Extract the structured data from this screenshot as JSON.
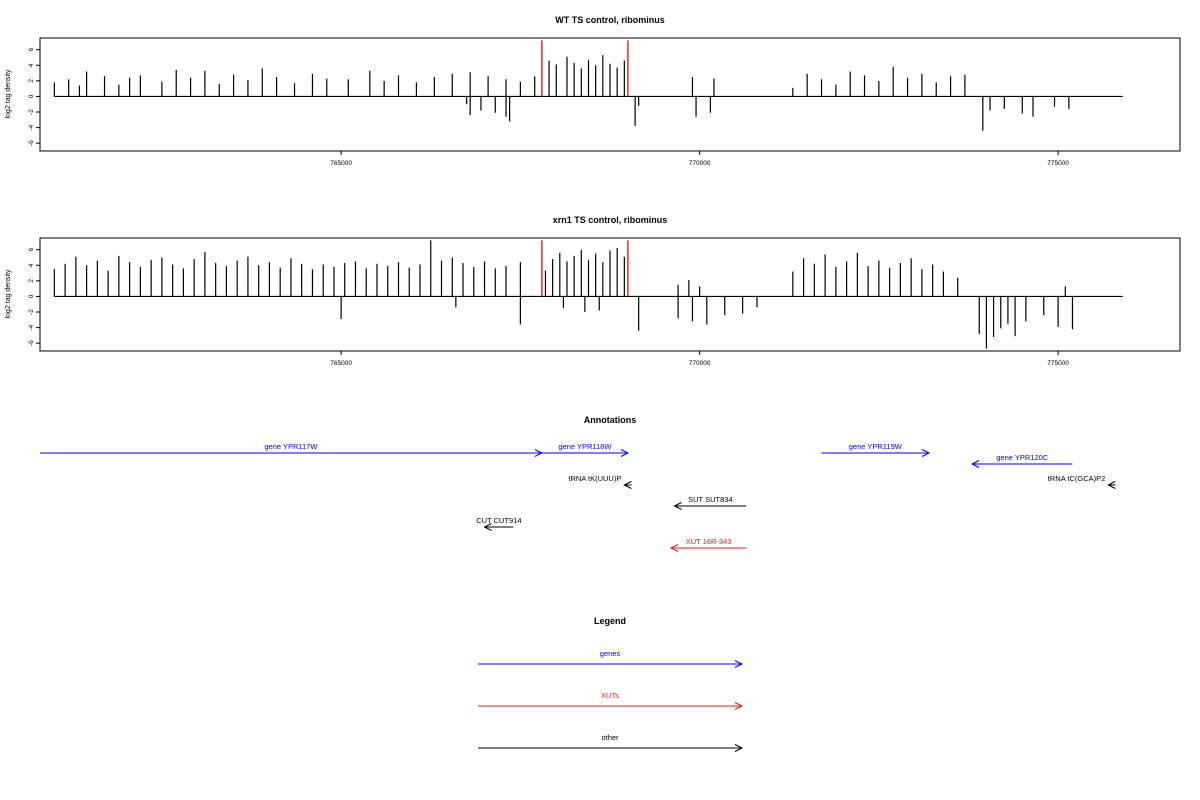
{
  "chart_data": [
    {
      "type": "bar",
      "title": "WT TS control, ribominus",
      "xlabel": "",
      "ylabel": "log2 tag density",
      "xlim": [
        760800,
        776700
      ],
      "ylim": [
        -7,
        7.5
      ],
      "x_ticks": [
        765000,
        770000,
        775000
      ],
      "x_tick_labels": [
        "765000",
        "770000",
        "775000"
      ],
      "y_ticks": [
        -6,
        -4,
        -2,
        0,
        2,
        4,
        6
      ],
      "y_tick_labels": [
        "-6",
        "-4",
        "-2",
        "0",
        "2",
        "4",
        "6"
      ],
      "baseline_range": [
        761000,
        775900
      ],
      "grid": false,
      "highlight_color": "#e41a1c",
      "highlights_x": [
        767800,
        769000
      ],
      "highlight_height": 7.2,
      "bar_color": "#000000",
      "series": [
        {
          "name": "+ strand",
          "x": [
            761000,
            761200,
            761350,
            761450,
            761700,
            761900,
            762050,
            762200,
            762500,
            762700,
            762900,
            763100,
            763300,
            763500,
            763700,
            763900,
            764100,
            764350,
            764600,
            764800,
            765100,
            765400,
            765600,
            765800,
            766050,
            766300,
            766550,
            766800,
            767050,
            767300,
            767500,
            767700,
            767900,
            768000,
            768150,
            768250,
            768350,
            768450,
            768550,
            768650,
            768750,
            768850,
            768950,
            769900,
            770200,
            771300,
            771500,
            771700,
            771900,
            772100,
            772300,
            772500,
            772700,
            772900,
            773100,
            773300,
            773500,
            773700
          ],
          "values": [
            1.8,
            2.2,
            1.4,
            3.2,
            2.6,
            1.5,
            2.4,
            2.7,
            1.9,
            3.4,
            2.4,
            3.3,
            1.6,
            2.8,
            2.1,
            3.6,
            2.5,
            1.7,
            2.9,
            2.3,
            2.2,
            3.3,
            2.0,
            2.7,
            1.8,
            2.5,
            2.9,
            3.1,
            2.6,
            2.2,
            1.9,
            2.6,
            4.6,
            4.1,
            5.1,
            4.3,
            3.6,
            4.7,
            4.0,
            5.3,
            4.2,
            3.7,
            4.6,
            2.5,
            2.3,
            1.1,
            2.9,
            2.2,
            1.5,
            3.2,
            2.7,
            2.0,
            3.8,
            2.4,
            2.9,
            1.8,
            2.6,
            2.8
          ]
        },
        {
          "name": "- strand",
          "x": [
            766750,
            766800,
            766950,
            767150,
            767300,
            767350,
            769100,
            769150,
            769950,
            770150,
            773950,
            774050,
            774250,
            774500,
            774650,
            774950,
            775150
          ],
          "values": [
            -1.0,
            -2.4,
            -1.8,
            -2.1,
            -2.6,
            -3.2,
            -3.8,
            -1.2,
            -2.6,
            -2.1,
            -4.4,
            -1.8,
            -1.6,
            -2.2,
            -2.6,
            -1.3,
            -1.6
          ]
        }
      ]
    },
    {
      "type": "bar",
      "title": "xrn1 TS control, ribominus",
      "xlabel": "",
      "ylabel": "log2 tag density",
      "xlim": [
        760800,
        776700
      ],
      "ylim": [
        -7,
        7.5
      ],
      "x_ticks": [
        765000,
        770000,
        775000
      ],
      "x_tick_labels": [
        "765000",
        "770000",
        "775000"
      ],
      "y_ticks": [
        -6,
        -4,
        -2,
        0,
        2,
        4,
        6
      ],
      "y_tick_labels": [
        "-6",
        "-4",
        "-2",
        "0",
        "2",
        "4",
        "6"
      ],
      "baseline_range": [
        761000,
        775900
      ],
      "grid": false,
      "highlight_color": "#e41a1c",
      "highlights_x": [
        767800,
        769000
      ],
      "highlight_height": 7.2,
      "bar_color": "#000000",
      "series": [
        {
          "name": "+ strand",
          "x": [
            761000,
            761150,
            761300,
            761450,
            761600,
            761750,
            761900,
            762050,
            762200,
            762350,
            762500,
            762650,
            762800,
            762950,
            763100,
            763250,
            763400,
            763550,
            763700,
            763850,
            764000,
            764150,
            764300,
            764450,
            764600,
            764750,
            764900,
            765050,
            765200,
            765350,
            765500,
            765650,
            765800,
            765950,
            766100,
            766250,
            766400,
            766550,
            766700,
            766850,
            767000,
            767150,
            767300,
            767500,
            767850,
            767950,
            768050,
            768150,
            768250,
            768350,
            768450,
            768550,
            768650,
            768750,
            768850,
            768950,
            769700,
            769850,
            770000,
            771300,
            771450,
            771600,
            771750,
            771900,
            772050,
            772200,
            772350,
            772500,
            772650,
            772800,
            772950,
            773100,
            773250,
            773400,
            773600,
            775100
          ],
          "values": [
            3.5,
            4.2,
            5.1,
            4.0,
            4.6,
            3.3,
            5.2,
            4.4,
            3.8,
            4.7,
            5.0,
            4.1,
            3.6,
            4.8,
            5.7,
            4.3,
            3.9,
            4.6,
            5.1,
            4.0,
            4.4,
            3.7,
            4.9,
            4.2,
            3.5,
            4.1,
            3.8,
            4.3,
            4.5,
            3.6,
            4.2,
            3.9,
            4.4,
            3.7,
            4.1,
            7.2,
            4.6,
            5.0,
            4.3,
            3.8,
            4.5,
            3.6,
            3.9,
            4.4,
            3.3,
            4.8,
            5.6,
            4.5,
            5.2,
            6.0,
            4.7,
            5.5,
            4.4,
            5.9,
            6.2,
            5.1,
            1.5,
            2.1,
            1.3,
            3.2,
            4.9,
            4.2,
            5.4,
            3.8,
            4.5,
            5.6,
            3.9,
            4.6,
            3.7,
            4.3,
            4.9,
            3.5,
            4.1,
            3.2,
            2.4,
            1.3
          ]
        },
        {
          "name": "- strand",
          "x": [
            765000,
            766600,
            767500,
            768100,
            768400,
            768600,
            769150,
            769700,
            769900,
            770100,
            770350,
            770600,
            770800,
            773900,
            774000,
            774100,
            774200,
            774300,
            774400,
            774550,
            774800,
            775000,
            775200
          ],
          "values": [
            -2.9,
            -1.4,
            -3.6,
            -1.5,
            -2.0,
            -1.8,
            -4.4,
            -2.8,
            -3.2,
            -3.6,
            -2.4,
            -2.2,
            -1.4,
            -4.8,
            -6.7,
            -5.2,
            -4.1,
            -3.5,
            -5.1,
            -3.2,
            -2.4,
            -3.9,
            -4.2
          ]
        }
      ]
    },
    {
      "type": "table",
      "title": "Annotations",
      "xlim": [
        760800,
        776700
      ],
      "items": [
        {
          "label": "gene YPR117W",
          "start": 760800,
          "end": 767800,
          "strand": "+",
          "row": 0,
          "color": "#0000ff"
        },
        {
          "label": "gene YPR118W",
          "start": 767800,
          "end": 769000,
          "strand": "+",
          "row": 0,
          "color": "#0000ff"
        },
        {
          "label": "gene YPR119W",
          "start": 771700,
          "end": 773200,
          "strand": "+",
          "row": 0,
          "color": "#0000ff"
        },
        {
          "label": "gene YPR120C",
          "start": 773800,
          "end": 775200,
          "strand": "-",
          "row": 1,
          "color": "#0000ff"
        },
        {
          "label": "tRNA tK(UUU)P",
          "start": 768950,
          "end": 769050,
          "strand": "-",
          "row": 2,
          "color": "#000000"
        },
        {
          "label": "tRNA tC(GCA)P2",
          "start": 775700,
          "end": 775800,
          "strand": "-",
          "row": 2,
          "color": "#000000"
        },
        {
          "label": "SUT SUT834",
          "start": 769650,
          "end": 770650,
          "strand": "-",
          "row": 3,
          "color": "#000000"
        },
        {
          "label": "CUT CUT914",
          "start": 767000,
          "end": 767400,
          "strand": "-",
          "row": 4,
          "color": "#000000"
        },
        {
          "label": "XUT 16R-343",
          "start": 769600,
          "end": 770650,
          "strand": "-",
          "row": 5,
          "color": "#e41a1c"
        }
      ]
    },
    {
      "type": "table",
      "title": "Legend",
      "entries": [
        {
          "label": "genes",
          "color": "#0000ff"
        },
        {
          "label": "XUTs",
          "color": "#e41a1c"
        },
        {
          "label": "other",
          "color": "#000000"
        }
      ]
    }
  ]
}
